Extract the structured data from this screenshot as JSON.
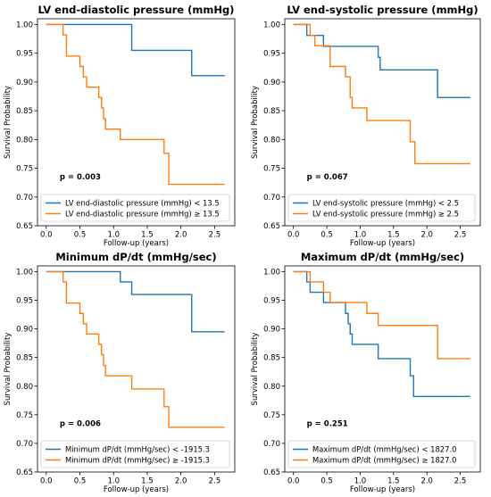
{
  "chart_data": [
    {
      "type": "line",
      "title": "LV end-diastolic pressure (mmHg)",
      "xlabel": "Follow-up (years)",
      "ylabel": "Survival Probability",
      "xlim": [
        -0.13,
        2.8
      ],
      "ylim": [
        0.65,
        1.01
      ],
      "xticks": [
        "0.0",
        "0.5",
        "1.0",
        "1.5",
        "2.0",
        "2.5"
      ],
      "yticks": [
        "0.65",
        "0.70",
        "0.75",
        "0.80",
        "0.85",
        "0.90",
        "0.95",
        "1.00"
      ],
      "annotation": "p = 0.003",
      "legend_position": "lower-left",
      "series": [
        {
          "name": "LV end-diastolic pressure (mmHg) < 13.5",
          "color": "#1f77b4",
          "x": [
            0,
            1.27,
            2.16,
            2.65
          ],
          "y": [
            1.0,
            0.955,
            0.911,
            0.911
          ]
        },
        {
          "name": "LV end-diastolic pressure (mmHg) ≥ 13.5",
          "color": "#ff7f0e",
          "x": [
            0,
            0.25,
            0.3,
            0.5,
            0.55,
            0.6,
            0.78,
            0.82,
            0.85,
            0.88,
            0.95,
            1.1,
            1.75,
            1.82,
            2.65
          ],
          "y": [
            1.0,
            0.982,
            0.945,
            0.927,
            0.909,
            0.891,
            0.873,
            0.855,
            0.836,
            0.818,
            0.818,
            0.8,
            0.776,
            0.722,
            0.722
          ]
        }
      ]
    },
    {
      "type": "line",
      "title": "LV end-systolic pressure (mmHg)",
      "xlabel": "Follow-up (years)",
      "ylabel": "Survival Probability",
      "xlim": [
        -0.13,
        2.8
      ],
      "ylim": [
        0.65,
        1.01
      ],
      "xticks": [
        "0.0",
        "0.5",
        "1.0",
        "1.5",
        "2.0",
        "2.5"
      ],
      "yticks": [
        "0.65",
        "0.70",
        "0.75",
        "0.80",
        "0.85",
        "0.90",
        "0.95",
        "1.00"
      ],
      "annotation": "p = 0.067",
      "legend_position": "lower-left",
      "series": [
        {
          "name": "LV end-systolic pressure (mmHg) < 2.5",
          "color": "#1f77b4",
          "x": [
            0,
            0.2,
            0.45,
            1.27,
            1.3,
            2.16,
            2.65
          ],
          "y": [
            1.0,
            0.981,
            0.962,
            0.943,
            0.921,
            0.873,
            0.873
          ]
        },
        {
          "name": "LV end-systolic pressure (mmHg) ≥ 2.5",
          "color": "#ff7f0e",
          "x": [
            0,
            0.25,
            0.32,
            0.55,
            0.78,
            0.85,
            0.88,
            0.95,
            1.1,
            1.75,
            1.82,
            2.65
          ],
          "y": [
            1.0,
            0.981,
            0.963,
            0.927,
            0.909,
            0.873,
            0.855,
            0.855,
            0.833,
            0.796,
            0.758,
            0.758
          ]
        }
      ]
    },
    {
      "type": "line",
      "title": "Minimum dP/dt (mmHg/sec)",
      "xlabel": "Follow-up (years)",
      "ylabel": "Survival Probability",
      "xlim": [
        -0.13,
        2.8
      ],
      "ylim": [
        0.65,
        1.01
      ],
      "xticks": [
        "0.0",
        "0.5",
        "1.0",
        "1.5",
        "2.0",
        "2.5"
      ],
      "yticks": [
        "0.65",
        "0.70",
        "0.75",
        "0.80",
        "0.85",
        "0.90",
        "0.95",
        "1.00"
      ],
      "annotation": "p = 0.006",
      "legend_position": "lower-left",
      "series": [
        {
          "name": "Minimum dP/dt (mmHg/sec) < -1915.3",
          "color": "#1f77b4",
          "x": [
            0,
            1.1,
            1.27,
            2.16,
            2.65
          ],
          "y": [
            1.0,
            0.982,
            0.96,
            0.895,
            0.895
          ]
        },
        {
          "name": "Minimum dP/dt (mmHg/sec) ≥ -1915.3",
          "color": "#ff7f0e",
          "x": [
            0,
            0.25,
            0.3,
            0.5,
            0.55,
            0.6,
            0.78,
            0.82,
            0.85,
            0.88,
            0.95,
            1.27,
            1.75,
            1.82,
            2.65
          ],
          "y": [
            1.0,
            0.982,
            0.945,
            0.927,
            0.909,
            0.891,
            0.873,
            0.855,
            0.836,
            0.818,
            0.818,
            0.795,
            0.764,
            0.728,
            0.728
          ]
        }
      ]
    },
    {
      "type": "line",
      "title": "Maximum dP/dt (mmHg/sec)",
      "xlabel": "Follow-up (years)",
      "ylabel": "Survival Probability",
      "xlim": [
        -0.13,
        2.8
      ],
      "ylim": [
        0.65,
        1.01
      ],
      "xticks": [
        "0.0",
        "0.5",
        "1.0",
        "1.5",
        "2.0",
        "2.5"
      ],
      "yticks": [
        "0.65",
        "0.70",
        "0.75",
        "0.80",
        "0.85",
        "0.90",
        "0.95",
        "1.00"
      ],
      "annotation": "p = 0.251",
      "legend_position": "lower-left",
      "series": [
        {
          "name": "Maximum dP/dt (mmHg/sec) < 1827.0",
          "color": "#1f77b4",
          "x": [
            0,
            0.2,
            0.25,
            0.45,
            0.78,
            0.82,
            0.85,
            0.88,
            1.27,
            1.75,
            1.8,
            2.65
          ],
          "y": [
            1.0,
            0.982,
            0.964,
            0.946,
            0.927,
            0.909,
            0.891,
            0.873,
            0.848,
            0.818,
            0.782,
            0.782
          ]
        },
        {
          "name": "Maximum dP/dt (mmHg/sec) ≥ 1827.0",
          "color": "#ff7f0e",
          "x": [
            0,
            0.25,
            0.45,
            0.55,
            1.1,
            1.27,
            2.16,
            2.65
          ],
          "y": [
            1.0,
            0.982,
            0.964,
            0.946,
            0.927,
            0.906,
            0.848,
            0.848
          ]
        }
      ]
    }
  ]
}
